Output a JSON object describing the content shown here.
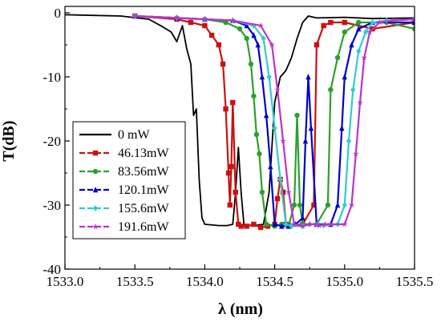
{
  "chart_data": {
    "type": "line",
    "xlabel": "λ (nm)",
    "ylabel": "T(dB)",
    "xlim": [
      1533.0,
      1535.5
    ],
    "ylim": [
      -40,
      1
    ],
    "x_ticks": [
      "1533.0",
      "1533.5",
      "1534.0",
      "1534.5",
      "1535.0",
      "1535.5"
    ],
    "y_ticks": [
      "0",
      "-10",
      "-20",
      "-30",
      "-40"
    ],
    "legend_position": "left",
    "grid": false,
    "series": [
      {
        "name": "0 mW",
        "color": "#000000",
        "marker": "none",
        "x": [
          1533.0,
          1533.2,
          1533.4,
          1533.6,
          1533.7,
          1533.76,
          1533.8,
          1533.84,
          1533.87,
          1533.9,
          1533.92,
          1533.94,
          1533.96,
          1533.98,
          1534.0,
          1534.1,
          1534.16,
          1534.2,
          1534.22,
          1534.24,
          1534.26,
          1534.28,
          1534.3,
          1534.35,
          1534.42,
          1534.46,
          1534.5,
          1534.54,
          1534.58,
          1534.62,
          1534.66,
          1534.7,
          1534.74,
          1534.8,
          1535.0,
          1535.2,
          1535.5
        ],
        "y": [
          -0.3,
          -0.4,
          -0.5,
          -1.0,
          -2.2,
          -3.0,
          -4.5,
          -2.0,
          -5.5,
          -8.0,
          -16.0,
          -15.0,
          -26.0,
          -32.0,
          -33.0,
          -33.2,
          -33.2,
          -33.0,
          -28.0,
          -21.0,
          -28.0,
          -33.0,
          -33.2,
          -33.2,
          -33.0,
          -28.0,
          -14.0,
          -10.0,
          -9.0,
          -7.0,
          -4.0,
          -1.5,
          -0.5,
          -0.8,
          -0.7,
          -0.9,
          -0.8
        ]
      },
      {
        "name": "46.13mW",
        "color": "#cc1111",
        "marker": "square",
        "x": [
          1533.5,
          1533.8,
          1533.9,
          1534.0,
          1534.05,
          1534.1,
          1534.13,
          1534.15,
          1534.17,
          1534.18,
          1534.19,
          1534.2,
          1534.22,
          1534.24,
          1534.26,
          1534.3,
          1534.35,
          1534.4,
          1534.45,
          1534.5,
          1534.52,
          1534.54,
          1534.56,
          1534.58,
          1534.6,
          1534.7,
          1534.78,
          1534.8,
          1534.85,
          1534.9,
          1535.0,
          1535.2,
          1535.5
        ],
        "y": [
          -0.5,
          -1.0,
          -1.5,
          -2.0,
          -3.5,
          -5.0,
          -8.0,
          -15.0,
          -25.0,
          -30.0,
          -24.0,
          -14.0,
          -28.0,
          -33.0,
          -33.3,
          -33.3,
          -33.0,
          -33.5,
          -33.3,
          -33.0,
          -29.0,
          -26.0,
          -28.0,
          -33.0,
          -33.2,
          -33.0,
          -30.0,
          -5.0,
          -2.0,
          -1.5,
          -1.5,
          -2.5,
          -1.5
        ]
      },
      {
        "name": "83.56mW",
        "color": "#2ca02c",
        "marker": "circle",
        "x": [
          1533.5,
          1533.8,
          1534.0,
          1534.15,
          1534.25,
          1534.3,
          1534.33,
          1534.35,
          1534.37,
          1534.39,
          1534.41,
          1534.44,
          1534.5,
          1534.55,
          1534.6,
          1534.64,
          1534.66,
          1534.68,
          1534.7,
          1534.8,
          1534.88,
          1534.9,
          1534.95,
          1535.0,
          1535.1,
          1535.3,
          1535.5
        ],
        "y": [
          -0.5,
          -0.8,
          -1.0,
          -1.5,
          -2.5,
          -4.0,
          -8.0,
          -13.0,
          -19.0,
          -22.0,
          -28.0,
          -33.0,
          -33.3,
          -33.0,
          -33.2,
          -30.0,
          -16.0,
          -30.0,
          -33.0,
          -33.0,
          -30.0,
          -12.0,
          -7.0,
          -3.0,
          -1.5,
          -1.5,
          -2.5
        ]
      },
      {
        "name": "120.1mW",
        "color": "#0000cc",
        "marker": "triangle",
        "x": [
          1533.5,
          1533.8,
          1534.0,
          1534.2,
          1534.3,
          1534.35,
          1534.38,
          1534.41,
          1534.44,
          1534.47,
          1534.5,
          1534.55,
          1534.6,
          1534.65,
          1534.7,
          1534.72,
          1534.74,
          1534.76,
          1534.8,
          1534.9,
          1534.95,
          1534.98,
          1535.0,
          1535.05,
          1535.1,
          1535.2,
          1535.5
        ],
        "y": [
          -0.5,
          -0.8,
          -1.0,
          -1.2,
          -2.0,
          -3.5,
          -5.0,
          -10.0,
          -16.0,
          -24.0,
          -33.0,
          -33.3,
          -33.3,
          -33.0,
          -32.0,
          -20.0,
          -10.0,
          -18.0,
          -33.0,
          -33.0,
          -30.0,
          -18.0,
          -10.0,
          -5.0,
          -2.5,
          -1.5,
          -1.5
        ]
      },
      {
        "name": "155.6mW",
        "color": "#33cccc",
        "marker": "diamond",
        "x": [
          1533.5,
          1533.8,
          1534.0,
          1534.2,
          1534.35,
          1534.42,
          1534.46,
          1534.5,
          1534.54,
          1534.58,
          1534.62,
          1534.7,
          1534.75,
          1534.8,
          1534.85,
          1534.95,
          1535.0,
          1535.03,
          1535.06,
          1535.1,
          1535.15,
          1535.2,
          1535.3,
          1535.5
        ],
        "y": [
          -0.5,
          -0.8,
          -1.0,
          -1.2,
          -2.0,
          -4.0,
          -10.0,
          -18.0,
          -26.0,
          -33.0,
          -33.3,
          -33.3,
          -33.0,
          -33.0,
          -33.2,
          -33.0,
          -30.0,
          -20.0,
          -12.0,
          -6.0,
          -3.0,
          -1.5,
          -1.2,
          -1.0
        ]
      },
      {
        "name": "191.6mW",
        "color": "#bb33cc",
        "marker": "star",
        "x": [
          1533.5,
          1533.8,
          1534.0,
          1534.2,
          1534.4,
          1534.48,
          1534.52,
          1534.56,
          1534.6,
          1534.64,
          1534.7,
          1534.75,
          1534.8,
          1534.82,
          1534.86,
          1534.9,
          1535.0,
          1535.05,
          1535.08,
          1535.11,
          1535.14,
          1535.18,
          1535.25,
          1535.35,
          1535.5
        ],
        "y": [
          -0.5,
          -0.8,
          -1.0,
          -1.2,
          -2.0,
          -5.0,
          -12.0,
          -20.0,
          -28.0,
          -33.0,
          -33.3,
          -33.0,
          -33.0,
          -33.2,
          -33.0,
          -33.0,
          -33.0,
          -30.0,
          -22.0,
          -14.0,
          -7.0,
          -3.0,
          -1.5,
          -1.2,
          -1.0
        ]
      }
    ]
  }
}
